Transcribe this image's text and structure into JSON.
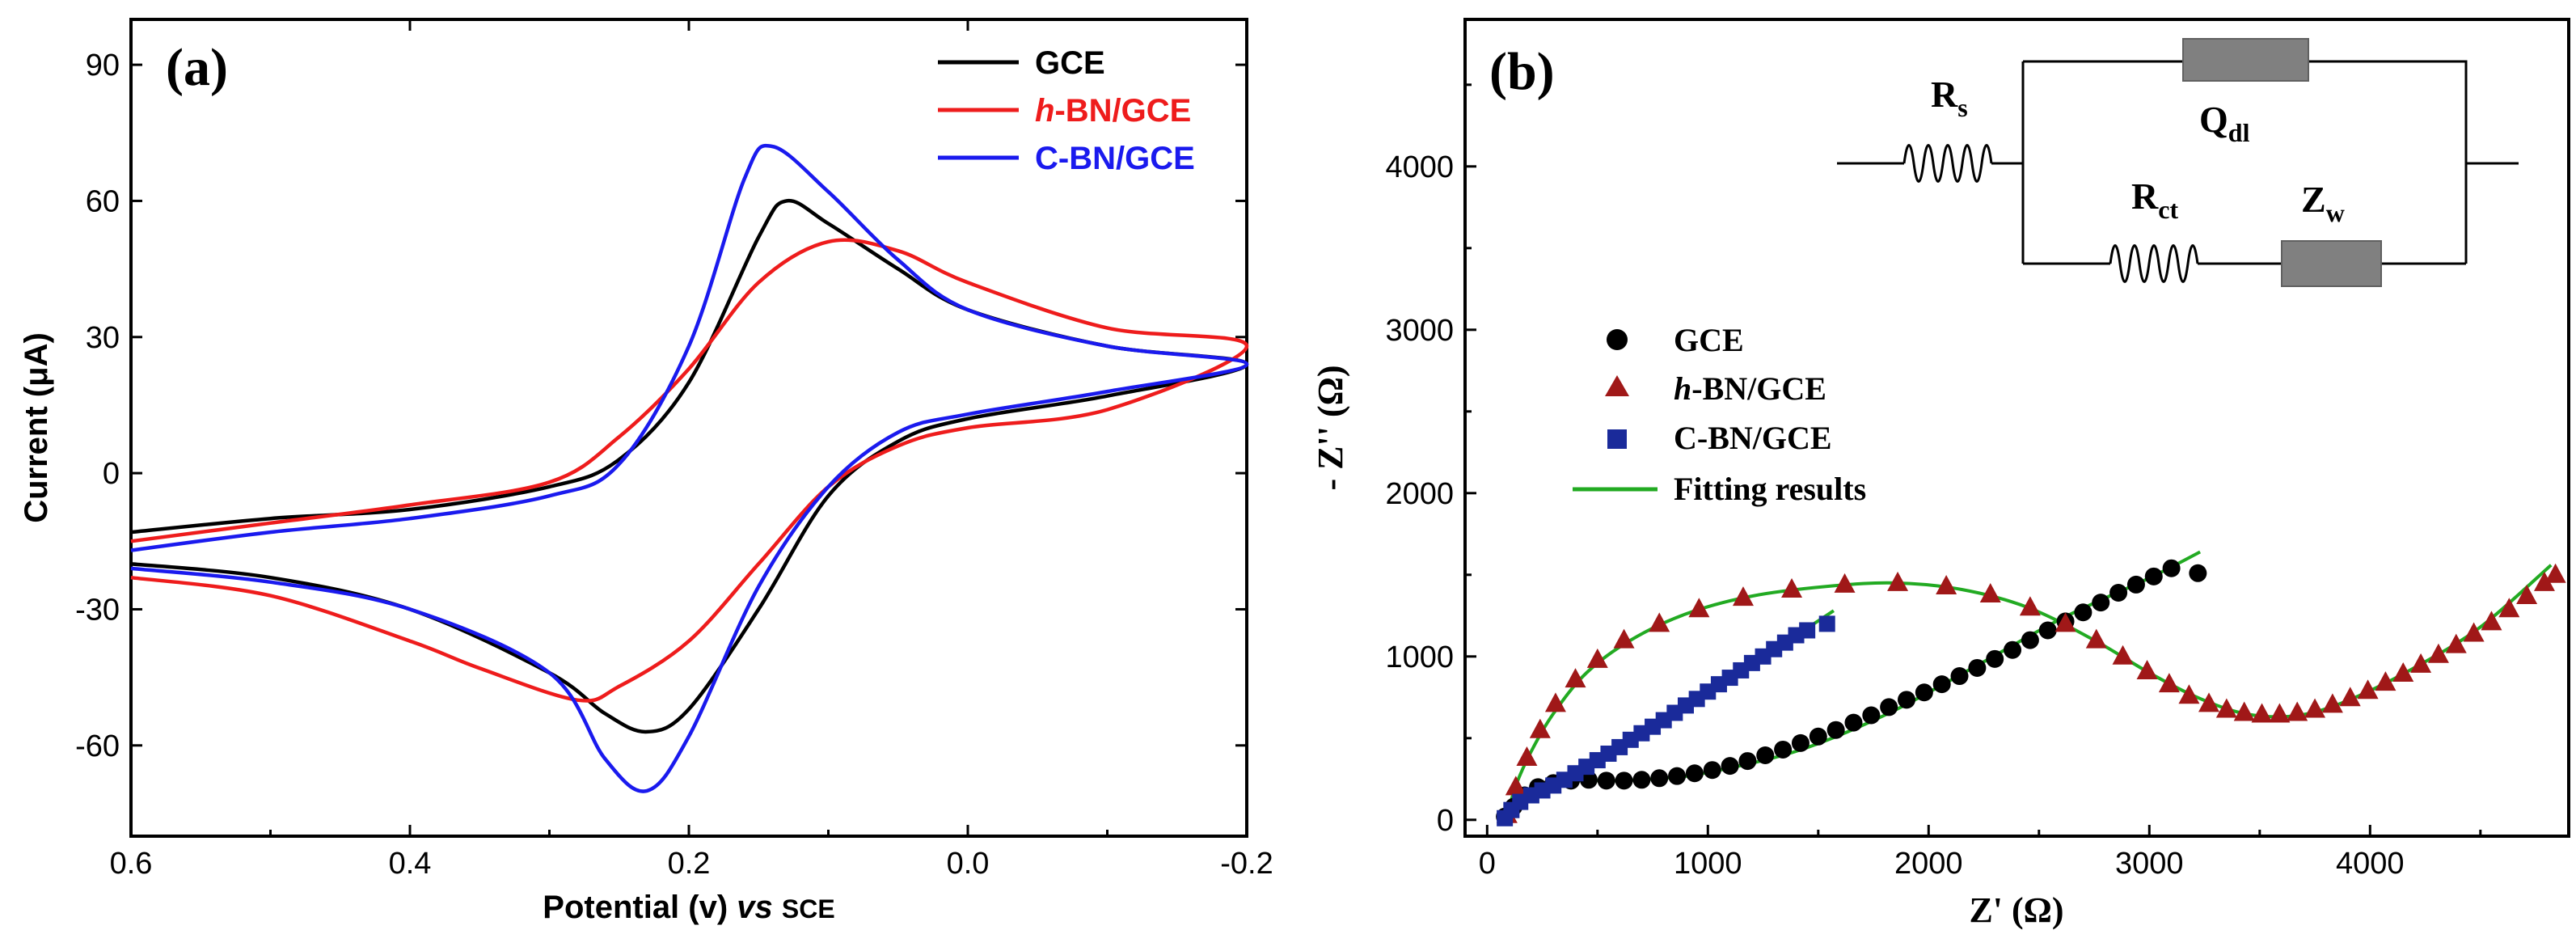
{
  "chart_data": [
    {
      "type": "line",
      "panel_label": "(a)",
      "xlabel": "Potential (v)",
      "xlabel_italic": "vs",
      "xlabel_suffix": "SCE",
      "ylabel": "Current (μA)",
      "xlim": [
        0.6,
        -0.2
      ],
      "ylim": [
        -80,
        100
      ],
      "xticks": [
        0.6,
        0.4,
        0.2,
        0.0,
        -0.2
      ],
      "xticklabels": [
        "0.6",
        "0.4",
        "0.2",
        "0.0",
        "-0.2"
      ],
      "yticks": [
        90,
        60,
        30,
        0,
        -30,
        -60
      ],
      "yticklabels": [
        "90",
        "60",
        "30",
        "0",
        "-30",
        "-60"
      ],
      "legend_position": "top-right",
      "series": [
        {
          "name": "GCE",
          "name_italic": "",
          "name_rest": "GCE",
          "color": "#000000",
          "forward": [
            [
              0.6,
              -13
            ],
            [
              0.5,
              -10
            ],
            [
              0.4,
              -8
            ],
            [
              0.3,
              -3
            ],
            [
              0.25,
              3
            ],
            [
              0.2,
              20
            ],
            [
              0.15,
              52
            ],
            [
              0.13,
              60
            ],
            [
              0.1,
              55
            ],
            [
              0.05,
              45
            ],
            [
              0.0,
              36
            ],
            [
              -0.1,
              28
            ],
            [
              -0.2,
              24
            ]
          ],
          "reverse": [
            [
              -0.2,
              23
            ],
            [
              -0.1,
              17
            ],
            [
              0.0,
              12
            ],
            [
              0.05,
              7
            ],
            [
              0.1,
              -5
            ],
            [
              0.15,
              -30
            ],
            [
              0.2,
              -52
            ],
            [
              0.23,
              -57
            ],
            [
              0.26,
              -53
            ],
            [
              0.3,
              -44
            ],
            [
              0.4,
              -30
            ],
            [
              0.5,
              -23
            ],
            [
              0.6,
              -20
            ]
          ]
        },
        {
          "name": "h-BN/GCE",
          "name_italic": "h",
          "name_rest": "-BN/GCE",
          "color": "#ee1c1c",
          "forward": [
            [
              0.6,
              -15
            ],
            [
              0.5,
              -11
            ],
            [
              0.4,
              -7
            ],
            [
              0.3,
              -2
            ],
            [
              0.25,
              8
            ],
            [
              0.2,
              23
            ],
            [
              0.15,
              42
            ],
            [
              0.1,
              51
            ],
            [
              0.05,
              49
            ],
            [
              0.0,
              42
            ],
            [
              -0.1,
              32
            ],
            [
              -0.2,
              28
            ]
          ],
          "reverse": [
            [
              -0.2,
              28
            ],
            [
              -0.1,
              14
            ],
            [
              0.0,
              10
            ],
            [
              0.05,
              6
            ],
            [
              0.1,
              -3
            ],
            [
              0.15,
              -20
            ],
            [
              0.2,
              -37
            ],
            [
              0.25,
              -47
            ],
            [
              0.28,
              -50
            ],
            [
              0.35,
              -43
            ],
            [
              0.4,
              -37
            ],
            [
              0.5,
              -27
            ],
            [
              0.6,
              -23
            ]
          ]
        },
        {
          "name": "C-BN/GCE",
          "name_italic": "",
          "name_rest": "C-BN/GCE",
          "color": "#1a1aee",
          "forward": [
            [
              0.6,
              -17
            ],
            [
              0.5,
              -13
            ],
            [
              0.4,
              -10
            ],
            [
              0.3,
              -5
            ],
            [
              0.25,
              2
            ],
            [
              0.2,
              28
            ],
            [
              0.16,
              65
            ],
            [
              0.14,
              72
            ],
            [
              0.1,
              62
            ],
            [
              0.05,
              47
            ],
            [
              0.0,
              36
            ],
            [
              -0.1,
              28
            ],
            [
              -0.2,
              24
            ]
          ],
          "reverse": [
            [
              -0.2,
              23
            ],
            [
              -0.1,
              18
            ],
            [
              0.0,
              13
            ],
            [
              0.05,
              9
            ],
            [
              0.1,
              -3
            ],
            [
              0.15,
              -25
            ],
            [
              0.2,
              -58
            ],
            [
              0.23,
              -70
            ],
            [
              0.26,
              -63
            ],
            [
              0.3,
              -44
            ],
            [
              0.4,
              -30
            ],
            [
              0.5,
              -24
            ],
            [
              0.6,
              -21
            ]
          ]
        }
      ]
    },
    {
      "type": "scatter",
      "panel_label": "(b)",
      "xlabel": "Z' (Ω)",
      "ylabel": "- Z'' (Ω)",
      "xlim": [
        -100,
        4900
      ],
      "ylim": [
        -100,
        4900
      ],
      "xticks": [
        0,
        1000,
        2000,
        3000,
        4000
      ],
      "xticklabels": [
        "0",
        "1000",
        "2000",
        "3000",
        "4000"
      ],
      "yticks": [
        0,
        1000,
        2000,
        3000,
        4000
      ],
      "yticklabels": [
        "0",
        "1000",
        "2000",
        "3000",
        "4000"
      ],
      "legend_position": "center-left",
      "series": [
        {
          "name": "GCE",
          "name_italic": "",
          "name_rest": "GCE",
          "marker": "circle",
          "color": "#000000",
          "points": [
            [
              80,
              20
            ],
            [
              120,
              80
            ],
            [
              170,
              150
            ],
            [
              230,
              200
            ],
            [
              300,
              225
            ],
            [
              380,
              240
            ],
            [
              460,
              245
            ],
            [
              540,
              240
            ],
            [
              620,
              240
            ],
            [
              700,
              245
            ],
            [
              780,
              255
            ],
            [
              860,
              268
            ],
            [
              940,
              285
            ],
            [
              1020,
              305
            ],
            [
              1100,
              330
            ],
            [
              1180,
              360
            ],
            [
              1260,
              395
            ],
            [
              1340,
              430
            ],
            [
              1420,
              470
            ],
            [
              1500,
              510
            ],
            [
              1580,
              550
            ],
            [
              1660,
              595
            ],
            [
              1740,
              640
            ],
            [
              1820,
              690
            ],
            [
              1900,
              735
            ],
            [
              1980,
              780
            ],
            [
              2060,
              830
            ],
            [
              2140,
              880
            ],
            [
              2220,
              930
            ],
            [
              2300,
              985
            ],
            [
              2380,
              1040
            ],
            [
              2460,
              1100
            ],
            [
              2540,
              1160
            ],
            [
              2620,
              1215
            ],
            [
              2700,
              1270
            ],
            [
              2780,
              1330
            ],
            [
              2860,
              1390
            ],
            [
              2940,
              1440
            ],
            [
              3020,
              1490
            ],
            [
              3100,
              1540
            ],
            [
              3220,
              1510
            ]
          ]
        },
        {
          "name": "h-BN/GCE",
          "name_italic": "h",
          "name_rest": "-BN/GCE",
          "marker": "triangle",
          "color": "#a01818",
          "points": [
            [
              90,
              30
            ],
            [
              130,
              200
            ],
            [
              180,
              380
            ],
            [
              240,
              550
            ],
            [
              310,
              710
            ],
            [
              400,
              860
            ],
            [
              500,
              980
            ],
            [
              620,
              1100
            ],
            [
              780,
              1200
            ],
            [
              960,
              1290
            ],
            [
              1160,
              1360
            ],
            [
              1380,
              1410
            ],
            [
              1620,
              1440
            ],
            [
              1860,
              1450
            ],
            [
              2080,
              1430
            ],
            [
              2280,
              1380
            ],
            [
              2460,
              1300
            ],
            [
              2620,
              1200
            ],
            [
              2760,
              1100
            ],
            [
              2880,
              1000
            ],
            [
              2990,
              910
            ],
            [
              3090,
              830
            ],
            [
              3180,
              760
            ],
            [
              3270,
              710
            ],
            [
              3350,
              675
            ],
            [
              3430,
              655
            ],
            [
              3510,
              645
            ],
            [
              3590,
              645
            ],
            [
              3670,
              655
            ],
            [
              3750,
              675
            ],
            [
              3830,
              705
            ],
            [
              3910,
              745
            ],
            [
              3990,
              790
            ],
            [
              4070,
              840
            ],
            [
              4150,
              895
            ],
            [
              4230,
              950
            ],
            [
              4310,
              1010
            ],
            [
              4390,
              1070
            ],
            [
              4470,
              1140
            ],
            [
              4550,
              1210
            ],
            [
              4630,
              1290
            ],
            [
              4710,
              1370
            ],
            [
              4790,
              1450
            ],
            [
              4840,
              1500
            ]
          ]
        },
        {
          "name": "C-BN/GCE",
          "name_italic": "",
          "name_rest": "C-BN/GCE",
          "marker": "square",
          "color": "#1a2a9a",
          "points": [
            [
              80,
              10
            ],
            [
              110,
              60
            ],
            [
              150,
              110
            ],
            [
              200,
              150
            ],
            [
              250,
              180
            ],
            [
              300,
              210
            ],
            [
              350,
              245
            ],
            [
              400,
              285
            ],
            [
              450,
              325
            ],
            [
              500,
              365
            ],
            [
              550,
              405
            ],
            [
              600,
              445
            ],
            [
              650,
              490
            ],
            [
              700,
              530
            ],
            [
              750,
              570
            ],
            [
              800,
              610
            ],
            [
              850,
              655
            ],
            [
              900,
              700
            ],
            [
              950,
              740
            ],
            [
              1000,
              785
            ],
            [
              1050,
              830
            ],
            [
              1100,
              870
            ],
            [
              1150,
              915
            ],
            [
              1200,
              960
            ],
            [
              1250,
              1000
            ],
            [
              1300,
              1045
            ],
            [
              1350,
              1085
            ],
            [
              1400,
              1130
            ],
            [
              1450,
              1160
            ],
            [
              1540,
              1200
            ]
          ]
        },
        {
          "name": "Fitting results",
          "name_italic": "",
          "name_rest": "Fitting results",
          "marker": "line",
          "color": "#22aa22",
          "fits": [
            [
              [
                80,
                20
              ],
              [
                120,
                90
              ],
              [
                170,
                160
              ],
              [
                230,
                205
              ],
              [
                300,
                225
              ],
              [
                400,
                240
              ],
              [
                600,
                240
              ],
              [
                800,
                255
              ],
              [
                1000,
                290
              ],
              [
                1400,
                420
              ],
              [
                1800,
                640
              ],
              [
                2200,
                930
              ],
              [
                2600,
                1230
              ],
              [
                3000,
                1480
              ],
              [
                3230,
                1640
              ]
            ],
            [
              [
                90,
                20
              ],
              [
                130,
                210
              ],
              [
                200,
                420
              ],
              [
                300,
                650
              ],
              [
                450,
                900
              ],
              [
                650,
                1100
              ],
              [
                900,
                1260
              ],
              [
                1200,
                1370
              ],
              [
                1550,
                1430
              ],
              [
                1850,
                1450
              ],
              [
                2150,
                1410
              ],
              [
                2450,
                1300
              ],
              [
                2750,
                1100
              ],
              [
                3000,
                900
              ],
              [
                3200,
                760
              ],
              [
                3400,
                660
              ],
              [
                3580,
                630
              ],
              [
                3750,
                660
              ],
              [
                3950,
                760
              ],
              [
                4200,
                930
              ],
              [
                4500,
                1180
              ],
              [
                4820,
                1560
              ]
            ],
            [
              [
                80,
                10
              ],
              [
                110,
                60
              ],
              [
                150,
                110
              ],
              [
                200,
                155
              ],
              [
                250,
                185
              ],
              [
                300,
                215
              ],
              [
                350,
                245
              ],
              [
                450,
                320
              ],
              [
                600,
                450
              ],
              [
                800,
                610
              ],
              [
                1000,
                790
              ],
              [
                1200,
                960
              ],
              [
                1400,
                1130
              ],
              [
                1570,
                1280
              ]
            ]
          ]
        }
      ],
      "circuit": {
        "Rs_main": "R",
        "Rs_sub": "s",
        "Qdl_main": "Q",
        "Qdl_sub": "dl",
        "Rct_main": "R",
        "Rct_sub": "ct",
        "Zw_main": "Z",
        "Zw_sub": "w"
      }
    }
  ]
}
